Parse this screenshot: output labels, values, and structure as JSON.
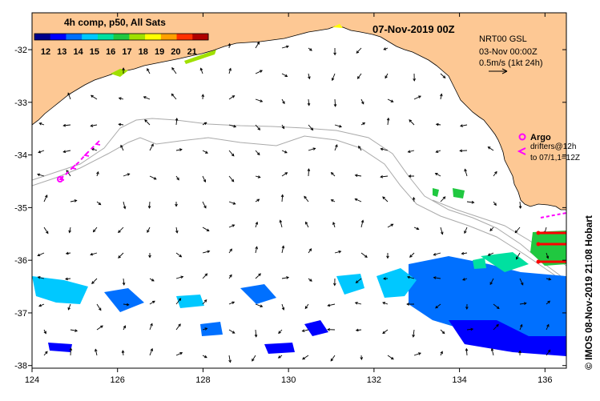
{
  "title": "07-Nov-2019 00Z",
  "colorbar": {
    "title": "4h comp, p50, All Sats",
    "labels": [
      "12",
      "13",
      "14",
      "15",
      "16",
      "17",
      "18",
      "19",
      "20",
      "21"
    ],
    "colors": [
      "#00008b",
      "#0000ff",
      "#0070ff",
      "#00c8ff",
      "#00e0a0",
      "#20c840",
      "#a0e000",
      "#ffff00",
      "#ffa000",
      "#ff3000",
      "#b00000"
    ]
  },
  "info": {
    "line1": "NRT00 GSL",
    "line2": "03-Nov 00:00Z",
    "line3": "0.5m/s (1kt 24h)"
  },
  "legend": {
    "argo": "Argo",
    "drifters_line1": "drifters@12h",
    "drifters_line2": "to 07/1,1=12Z"
  },
  "credit": "© IMOS 08-Nov-2019 21:08 Hobart",
  "axes": {
    "x_ticks": [
      "124",
      "126",
      "128",
      "130",
      "132",
      "134",
      "136"
    ],
    "y_ticks": [
      "-32",
      "-33",
      "-34",
      "-35",
      "-36",
      "-37",
      "-38"
    ],
    "lon_range": [
      124,
      136.5
    ],
    "lat_range": [
      -31.3,
      -38.05
    ]
  },
  "colors": {
    "land": "#fdc894",
    "coast": "#000000",
    "bathymetry": "#aaaaaa",
    "argo": "#ff00ff",
    "drifter_red": "#ff0000"
  }
}
